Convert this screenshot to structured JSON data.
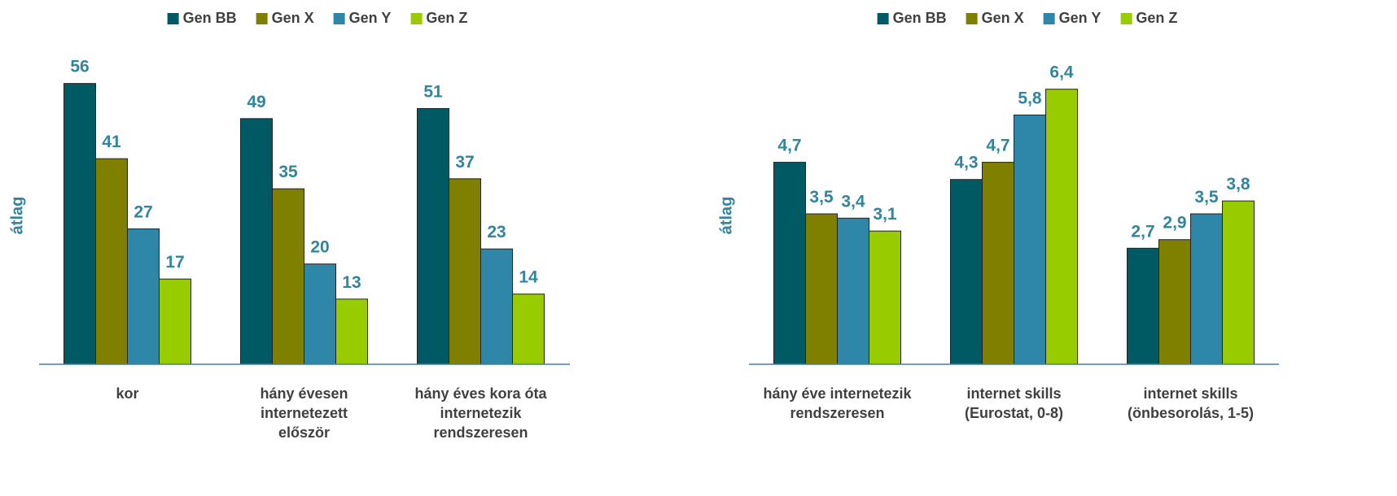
{
  "chart_data": [
    {
      "type": "bar",
      "y_label": "átlag",
      "legend": "top",
      "categories": [
        "kor",
        "hány évesen internetezett először",
        "hány éves kora óta internetezik rendszeresen"
      ],
      "series": [
        {
          "name": "Gen BB",
          "color": "#005a64",
          "values": [
            56,
            49,
            51
          ]
        },
        {
          "name": "Gen X",
          "color": "#808000",
          "values": [
            41,
            35,
            37
          ]
        },
        {
          "name": "Gen Y",
          "color": "#2e86a8",
          "values": [
            27,
            20,
            23
          ]
        },
        {
          "name": "Gen Z",
          "color": "#99cc00",
          "values": [
            17,
            13,
            14
          ]
        }
      ],
      "ylim": [
        0,
        60
      ]
    },
    {
      "type": "bar",
      "y_label": "átlag",
      "legend": "top",
      "categories": [
        "hány éve internetezik rendszeresen",
        "internet skills (Eurostat, 0-8)",
        "internet skills (önbesorolás, 1-5)"
      ],
      "series": [
        {
          "name": "Gen BB",
          "color": "#005a64",
          "values": [
            4.7,
            4.3,
            2.7
          ],
          "value_labels": [
            "4,7",
            "4,3",
            "2,7"
          ]
        },
        {
          "name": "Gen X",
          "color": "#808000",
          "values": [
            3.5,
            4.7,
            2.9
          ],
          "value_labels": [
            "3,5",
            "4,7",
            "2,9"
          ]
        },
        {
          "name": "Gen Y",
          "color": "#2e86a8",
          "values": [
            3.4,
            5.8,
            3.5
          ],
          "value_labels": [
            "3,4",
            "5,8",
            "3,5"
          ]
        },
        {
          "name": "Gen Z",
          "color": "#99cc00",
          "values": [
            3.1,
            6.4,
            3.8
          ],
          "value_labels": [
            "3,1",
            "6,4",
            "3,8"
          ]
        }
      ],
      "ylim": [
        0,
        7
      ]
    }
  ]
}
